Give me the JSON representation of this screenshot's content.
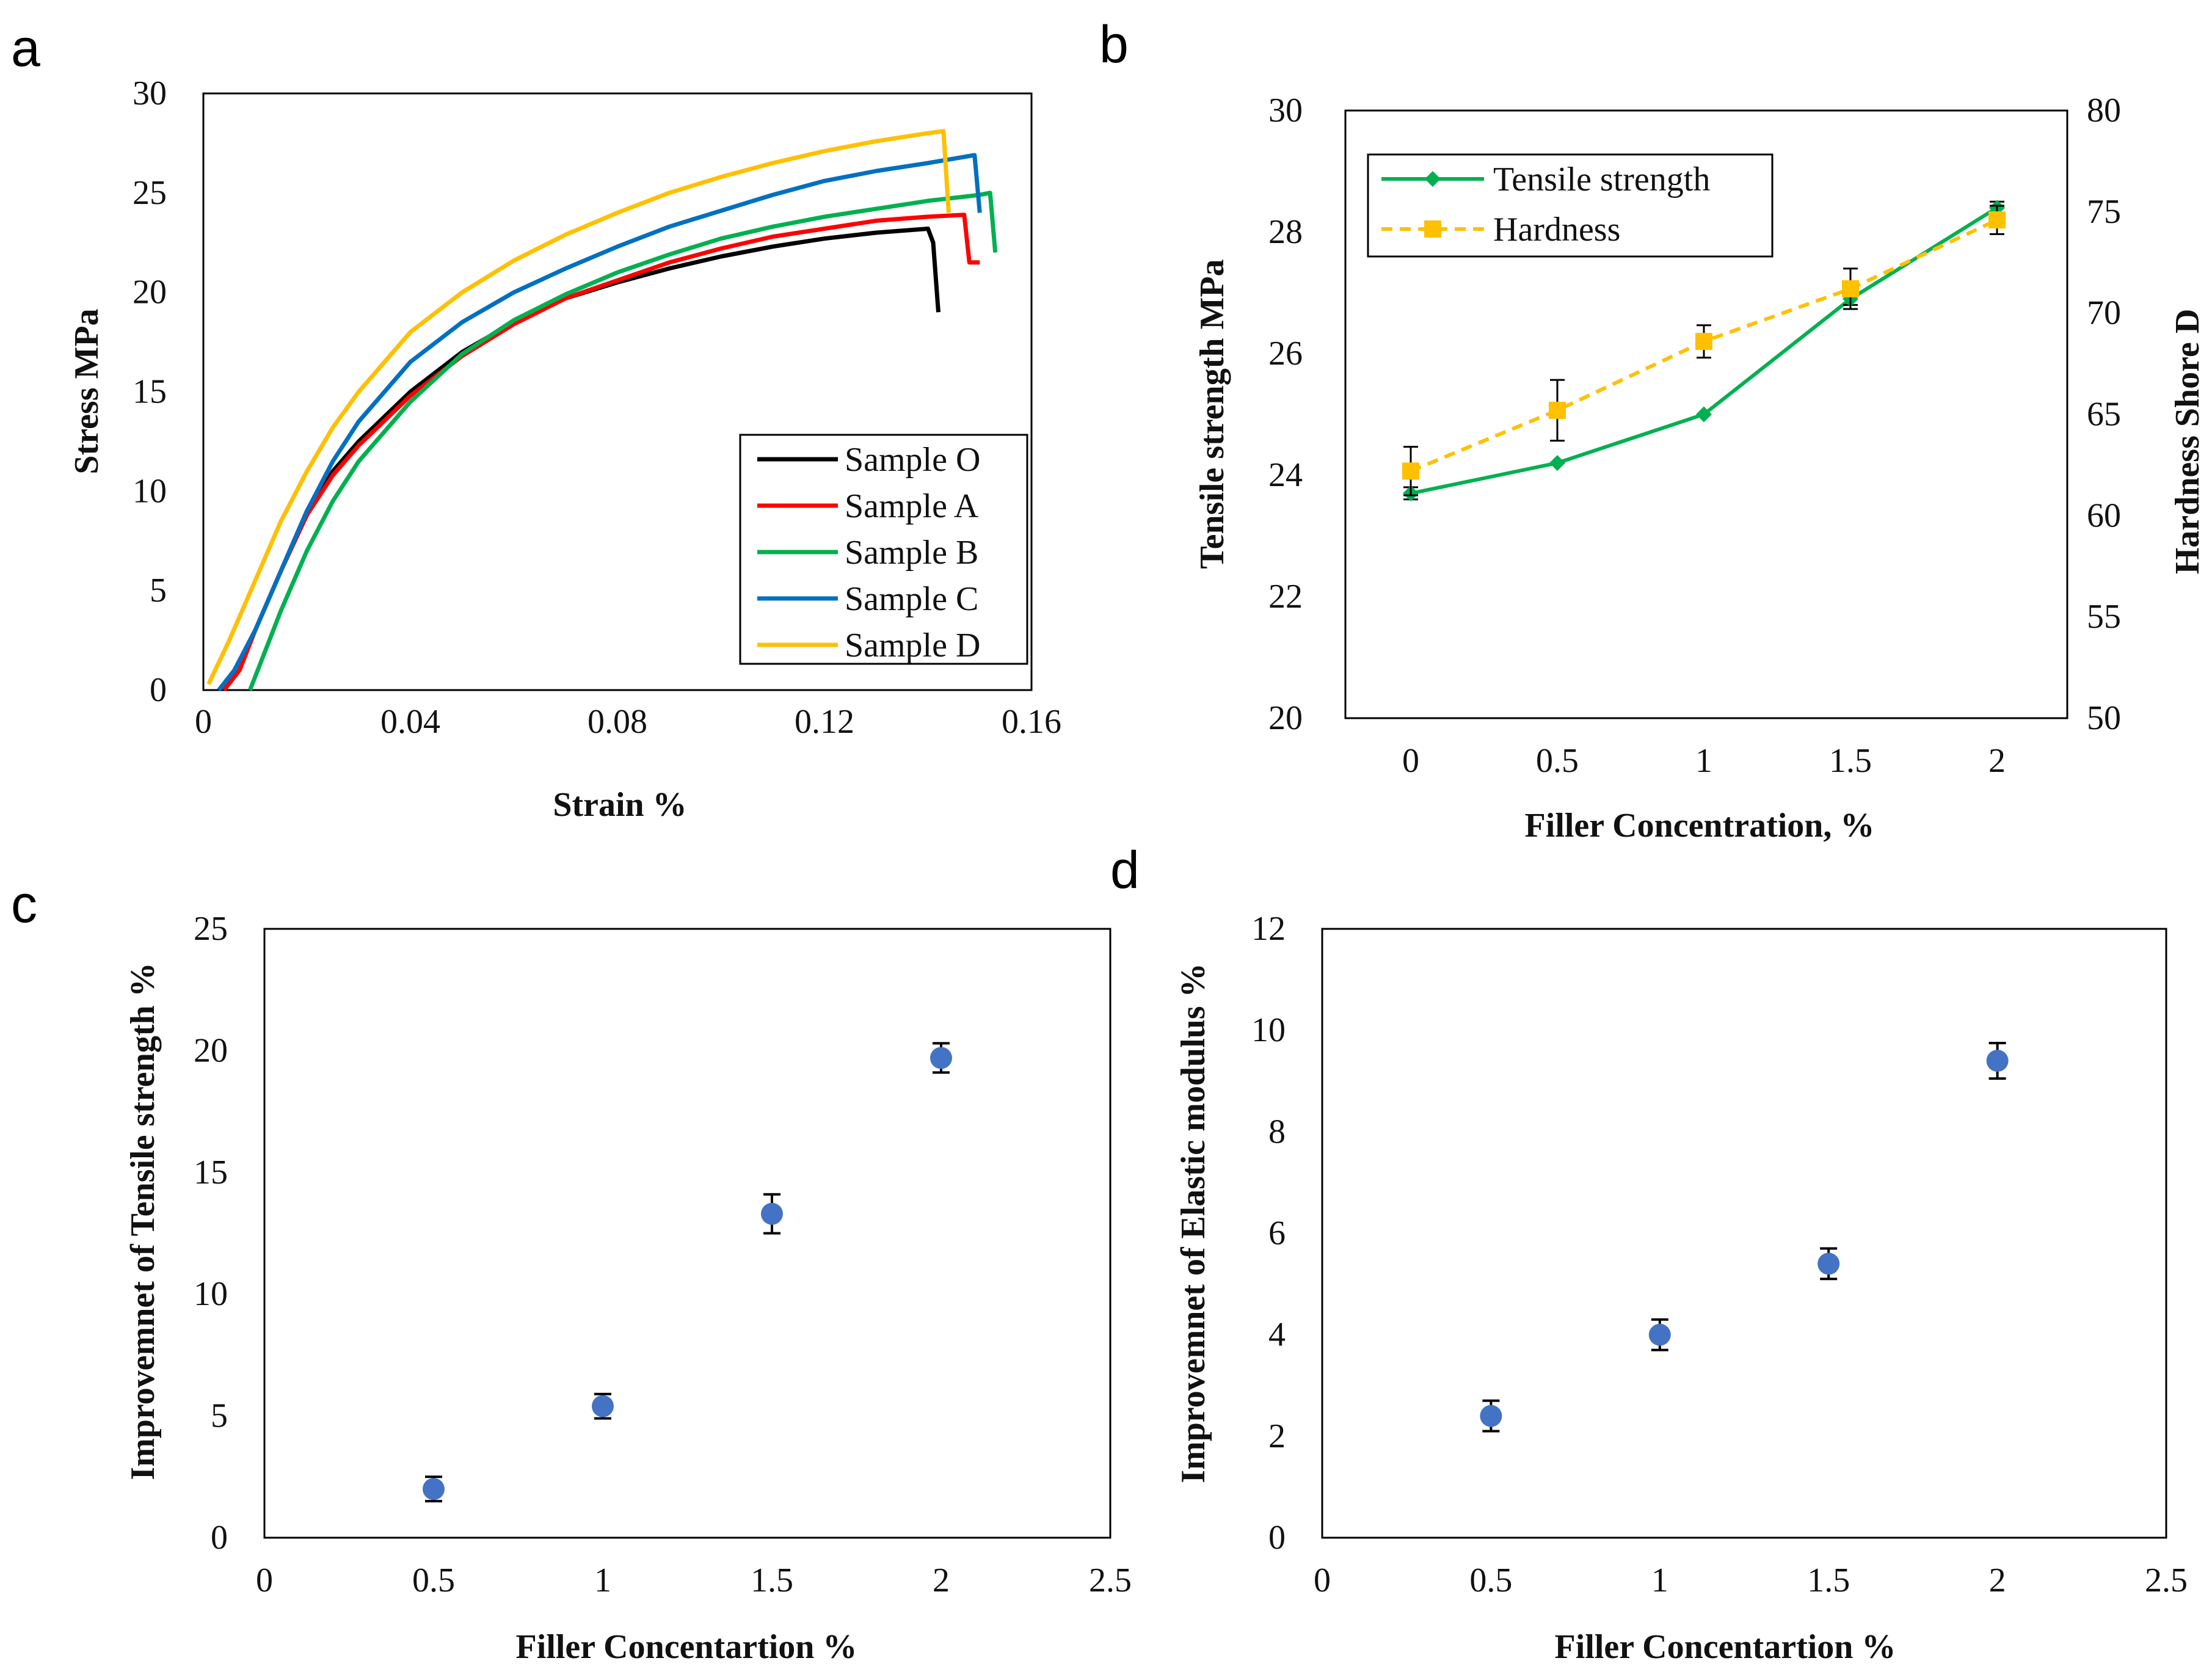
{
  "chart_data": [
    {
      "panel": "a",
      "type": "line",
      "xlabel": "Strain %",
      "ylabel": "Stress MPa",
      "xlim": [
        0,
        0.16
      ],
      "ylim": [
        0,
        30
      ],
      "xticks": [
        "0",
        "0.04",
        "0.08",
        "0.12",
        "0.16"
      ],
      "yticks": [
        "0",
        "5",
        "10",
        "15",
        "20",
        "25",
        "30"
      ],
      "legend_position": "bottom-right",
      "series": [
        {
          "name": "Sample O",
          "color": "#000000",
          "x": [
            0.003,
            0.006,
            0.01,
            0.015,
            0.02,
            0.025,
            0.03,
            0.04,
            0.05,
            0.06,
            0.07,
            0.08,
            0.09,
            0.1,
            0.11,
            0.12,
            0.13,
            0.14,
            0.141,
            0.142
          ],
          "y": [
            0,
            1.0,
            3.0,
            6.0,
            9.0,
            11.0,
            12.5,
            15.0,
            17.0,
            18.5,
            19.7,
            20.5,
            21.2,
            21.8,
            22.3,
            22.7,
            23.0,
            23.2,
            22.5,
            19.0
          ]
        },
        {
          "name": "Sample A",
          "color": "#ff0000",
          "x": [
            0.004,
            0.007,
            0.01,
            0.015,
            0.02,
            0.025,
            0.03,
            0.04,
            0.05,
            0.06,
            0.07,
            0.08,
            0.09,
            0.1,
            0.11,
            0.12,
            0.13,
            0.14,
            0.147,
            0.148,
            0.15
          ],
          "y": [
            0,
            1.0,
            3.0,
            6.0,
            8.8,
            10.8,
            12.3,
            14.8,
            16.8,
            18.4,
            19.7,
            20.6,
            21.5,
            22.2,
            22.8,
            23.2,
            23.6,
            23.8,
            23.9,
            21.5,
            21.5
          ]
        },
        {
          "name": "Sample B",
          "color": "#00b050",
          "x": [
            0.009,
            0.012,
            0.015,
            0.02,
            0.025,
            0.03,
            0.04,
            0.05,
            0.06,
            0.07,
            0.08,
            0.09,
            0.1,
            0.11,
            0.12,
            0.13,
            0.14,
            0.15,
            0.152,
            0.153
          ],
          "y": [
            0,
            2.0,
            4.0,
            7.0,
            9.5,
            11.5,
            14.5,
            16.9,
            18.6,
            19.9,
            21.0,
            21.9,
            22.7,
            23.3,
            23.8,
            24.2,
            24.6,
            24.9,
            25.0,
            22.0
          ]
        },
        {
          "name": "Sample C",
          "color": "#0070c0",
          "x": [
            0.003,
            0.006,
            0.01,
            0.015,
            0.02,
            0.025,
            0.03,
            0.04,
            0.05,
            0.06,
            0.07,
            0.08,
            0.09,
            0.1,
            0.11,
            0.12,
            0.13,
            0.14,
            0.149,
            0.15
          ],
          "y": [
            0,
            1.0,
            3.0,
            6.0,
            9.0,
            11.5,
            13.5,
            16.5,
            18.5,
            20.0,
            21.2,
            22.3,
            23.3,
            24.1,
            24.9,
            25.6,
            26.1,
            26.5,
            26.9,
            24.0
          ]
        },
        {
          "name": "Sample D",
          "color": "#ffc000",
          "x": [
            0.001,
            0.005,
            0.01,
            0.015,
            0.02,
            0.025,
            0.03,
            0.04,
            0.05,
            0.06,
            0.07,
            0.08,
            0.09,
            0.1,
            0.11,
            0.12,
            0.13,
            0.14,
            0.143,
            0.144
          ],
          "y": [
            0.3,
            2.5,
            5.5,
            8.5,
            11.0,
            13.2,
            15.0,
            18.0,
            20.0,
            21.6,
            22.9,
            24.0,
            25.0,
            25.8,
            26.5,
            27.1,
            27.6,
            28.0,
            28.1,
            24.0
          ]
        }
      ]
    },
    {
      "panel": "b",
      "type": "line",
      "xlabel": "Filler Concentration, %",
      "ylabel": "Tensile strength  MPa",
      "ylabel_right": "Hardness Shore D",
      "categories": [
        "0",
        "0.5",
        "1",
        "1.5",
        "2"
      ],
      "ylim": [
        20,
        30
      ],
      "ylim_right": [
        50,
        80
      ],
      "yticks": [
        "20",
        "22",
        "24",
        "26",
        "28",
        "30"
      ],
      "yticks_right": [
        "50",
        "55",
        "60",
        "65",
        "70",
        "75",
        "80"
      ],
      "legend_position": "top-left",
      "series": [
        {
          "name": "Tensile strength",
          "axis": "left",
          "color": "#00b050",
          "style": "solid",
          "marker": "diamond",
          "values": [
            23.7,
            24.2,
            25.0,
            26.9,
            28.4
          ],
          "errors": [
            0.1,
            0.0,
            0.0,
            0.1,
            0.1
          ]
        },
        {
          "name": "Hardness",
          "axis": "right",
          "color": "#ffc000",
          "style": "dashed",
          "marker": "square",
          "values": [
            62.2,
            65.2,
            68.6,
            71.2,
            74.6
          ],
          "errors": [
            1.2,
            1.5,
            0.8,
            1.0,
            0.7
          ]
        }
      ]
    },
    {
      "panel": "c",
      "type": "scatter",
      "xlabel": "Filler Concentartion %",
      "ylabel": "Improvemnet of Tensile strength %",
      "xlim": [
        0,
        2.5
      ],
      "ylim": [
        0,
        25
      ],
      "xticks": [
        "0",
        "0.5",
        "1",
        "1.5",
        "2",
        "2.5"
      ],
      "yticks": [
        "0",
        "5",
        "10",
        "15",
        "20",
        "25"
      ],
      "color": "#4472c4",
      "x": [
        0.5,
        1,
        1.5,
        2
      ],
      "y": [
        2.0,
        5.4,
        13.3,
        19.7
      ],
      "errors": [
        0.5,
        0.5,
        0.8,
        0.6
      ]
    },
    {
      "panel": "d",
      "type": "scatter",
      "xlabel": "Filler Concentartion %",
      "ylabel": "Improvemnet of Elastic modulus %",
      "xlim": [
        0,
        2.5
      ],
      "ylim": [
        0,
        12
      ],
      "xticks": [
        "0",
        "0.5",
        "1",
        "1.5",
        "2",
        "2.5"
      ],
      "yticks": [
        "0",
        "2",
        "4",
        "6",
        "8",
        "10",
        "12"
      ],
      "color": "#4472c4",
      "x": [
        0.5,
        1,
        1.5,
        2
      ],
      "y": [
        2.4,
        4.0,
        5.4,
        9.4
      ],
      "errors": [
        0.3,
        0.3,
        0.3,
        0.35
      ]
    }
  ]
}
